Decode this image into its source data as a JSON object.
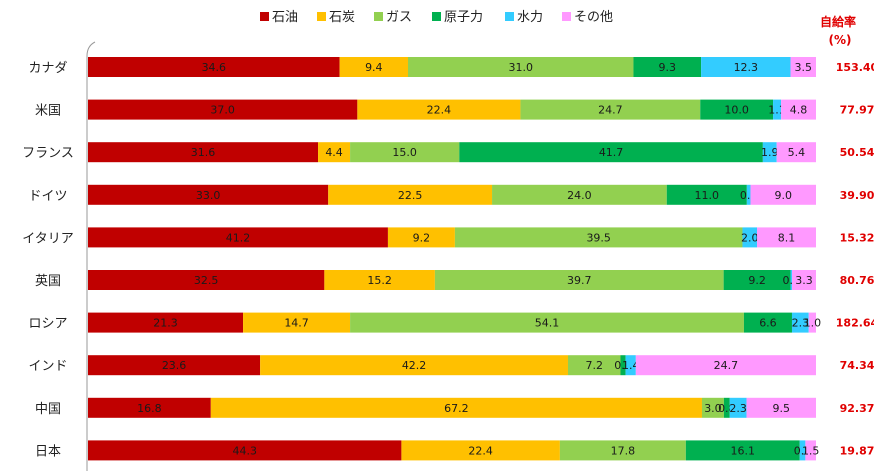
{
  "chart_data": {
    "type": "bar",
    "orientation": "horizontal",
    "stacked": true,
    "legend_position": "top",
    "ratio_header": [
      "自給率",
      "(%)"
    ],
    "series": [
      {
        "name": "石油",
        "color": "#c00000",
        "values": [
          34.6,
          37.0,
          31.6,
          33.0,
          41.2,
          32.5,
          21.3,
          23.6,
          16.8,
          44.3
        ]
      },
      {
        "name": "石炭",
        "color": "#ffc000",
        "values": [
          9.4,
          22.4,
          4.4,
          22.5,
          9.2,
          15.2,
          14.7,
          42.2,
          67.2,
          22.4
        ]
      },
      {
        "name": "ガス",
        "color": "#92d050",
        "values": [
          31.0,
          24.7,
          15.0,
          24.0,
          39.5,
          39.7,
          54.1,
          7.2,
          3.0,
          17.8
        ]
      },
      {
        "name": "原子力",
        "color": "#00b050",
        "values": [
          9.3,
          10.0,
          41.7,
          11.0,
          0.0,
          9.2,
          6.6,
          0.7,
          0.8,
          16.1
        ]
      },
      {
        "name": "水力",
        "color": "#33ccff",
        "values": [
          12.3,
          1.1,
          1.9,
          0.5,
          2.0,
          0.2,
          2.3,
          1.4,
          2.3,
          0.8
        ]
      },
      {
        "name": "その他",
        "color": "#ff99ff",
        "values": [
          3.5,
          4.8,
          5.4,
          9.0,
          8.1,
          3.3,
          1.0,
          24.7,
          9.5,
          1.5
        ]
      }
    ],
    "rows": [
      {
        "category": "カナダ",
        "ratio": "153.40",
        "labels": [
          "34.6",
          "9.4",
          "31.0",
          "9.3",
          "12.3",
          "3.5"
        ]
      },
      {
        "category": "米国",
        "ratio": "77.97",
        "labels": [
          "37.0",
          "22.4",
          "24.7",
          "10.0",
          "1.1",
          "4.8"
        ]
      },
      {
        "category": "フランス",
        "ratio": "50.54",
        "labels": [
          "31.6",
          "4.4",
          "15.0",
          "41.7",
          "1.9",
          "5.4"
        ]
      },
      {
        "category": "ドイツ",
        "ratio": "39.90",
        "labels": [
          "33.0",
          "22.5",
          "24.0",
          "11.0",
          "0.5",
          "9.0"
        ]
      },
      {
        "category": "イタリア",
        "ratio": "15.32",
        "labels": [
          "41.2",
          "9.2",
          "39.5",
          "",
          "2.0",
          "8.1"
        ]
      },
      {
        "category": "英国",
        "ratio": "80.76",
        "labels": [
          "32.5",
          "15.2",
          "39.7",
          "9.2",
          "0.2",
          "3.3"
        ]
      },
      {
        "category": "ロシア",
        "ratio": "182.64",
        "labels": [
          "21.3",
          "14.7",
          "54.1",
          "6.6",
          "2.3",
          "1.0"
        ]
      },
      {
        "category": "インド",
        "ratio": "74.34",
        "labels": [
          "23.6",
          "42.2",
          "7.2",
          "0.7",
          "1.4",
          "24.7"
        ]
      },
      {
        "category": "中国",
        "ratio": "92.37",
        "labels": [
          "16.8",
          "67.2",
          "3.0",
          "0.8",
          "2.3",
          "9.5"
        ]
      },
      {
        "category": "日本",
        "ratio": "19.87",
        "labels": [
          "44.3",
          "22.4",
          "17.8",
          "16.1",
          "0.8",
          "1.5"
        ]
      }
    ],
    "xlim": [
      0,
      100
    ]
  }
}
